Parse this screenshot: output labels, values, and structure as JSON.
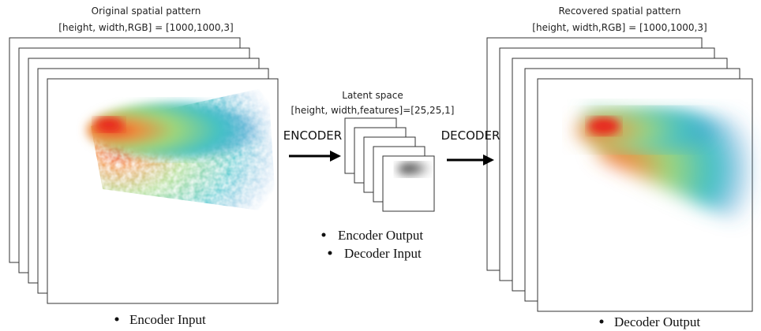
{
  "input_panel": {
    "title": "Original spatial pattern",
    "dims": "[height, width,RGB] = [1000,1000,3]",
    "label": "Encoder  Input"
  },
  "latent_panel": {
    "title": "Latent space",
    "dims": "[height, width,features]=[25,25,1]",
    "labels": [
      "Encoder Output",
      "Decoder Input"
    ]
  },
  "output_panel": {
    "title": "Recovered spatial pattern",
    "dims": "[height, width,RGB] = [1000,1000,3]",
    "label": "Decoder Output"
  },
  "arrows": {
    "encoder": "ENCODER",
    "decoder": "DECODER"
  }
}
